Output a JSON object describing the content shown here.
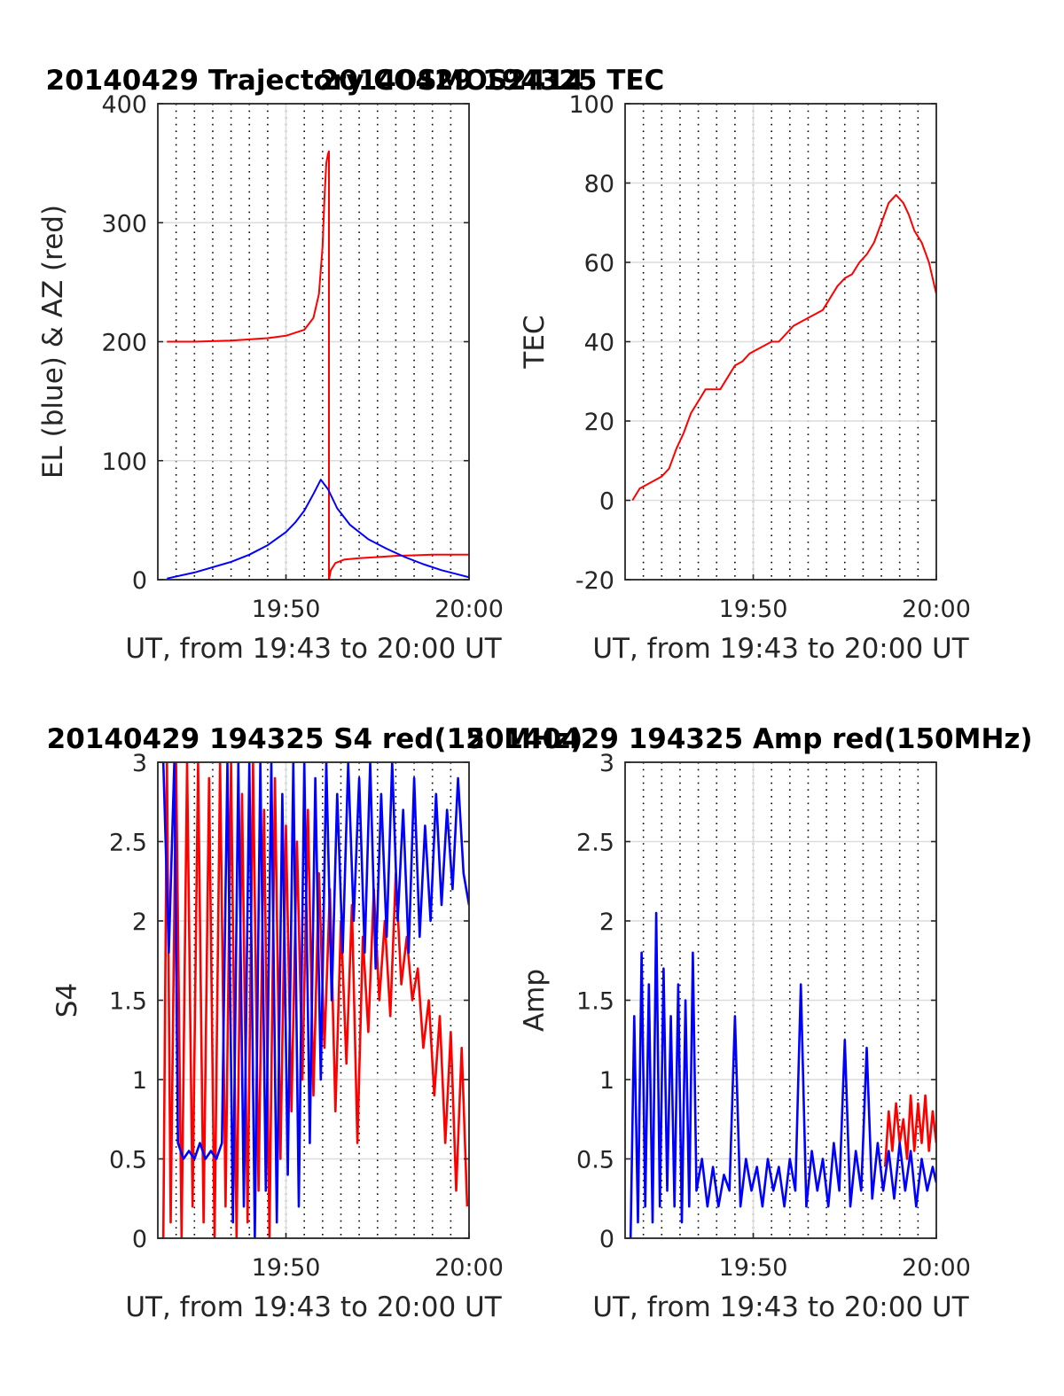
{
  "chart_data": [
    {
      "id": "traj",
      "type": "line",
      "title": "20140429 Trajectory COSMOS2414",
      "xlabel": "UT, from 19:43 to 20:00 UT",
      "ylabel": "EL (blue) & AZ (red)",
      "xlim": [
        0,
        17
      ],
      "ylim": [
        0,
        400
      ],
      "yticks": [
        0,
        100,
        200,
        300,
        400
      ],
      "ytick_labels": [
        "0",
        "100",
        "200",
        "300",
        "400"
      ],
      "xticks": [
        7,
        17
      ],
      "xtick_labels": [
        "19:50",
        "20:00"
      ],
      "grid": true,
      "series": [
        {
          "name": "AZ",
          "color": "#ff0000",
          "x": [
            0.5,
            2,
            4,
            6,
            7,
            8,
            8.5,
            8.8,
            9.0,
            9.1,
            9.2,
            9.3,
            9.35,
            9.35,
            9.45,
            9.7,
            10.2,
            11,
            12,
            13,
            14,
            15,
            16,
            17
          ],
          "y": [
            200,
            200,
            201,
            203,
            205,
            210,
            220,
            240,
            280,
            320,
            350,
            358,
            360,
            0,
            8,
            14,
            17,
            18,
            19,
            20,
            20.5,
            21,
            21,
            21
          ]
        },
        {
          "name": "EL",
          "color": "#0000ff",
          "x": [
            0.5,
            2,
            4,
            5,
            6,
            7,
            7.5,
            8,
            8.5,
            8.9,
            9.3,
            9.8,
            10.5,
            11.5,
            12.5,
            13.5,
            14.5,
            15.5,
            17
          ],
          "y": [
            1,
            6,
            15,
            21,
            29,
            40,
            48,
            58,
            72,
            84,
            76,
            60,
            46,
            34,
            26,
            19,
            13,
            8,
            2
          ]
        }
      ]
    },
    {
      "id": "tec",
      "type": "line",
      "title": "20140429 194325 TEC",
      "xlabel": "UT, from 19:43 to 20:00 UT",
      "ylabel": "TEC",
      "xlim": [
        0,
        17
      ],
      "ylim": [
        -20,
        100
      ],
      "yticks": [
        -20,
        0,
        20,
        40,
        60,
        80,
        100
      ],
      "ytick_labels": [
        "-20",
        "0",
        "20",
        "40",
        "60",
        "80",
        "100"
      ],
      "xticks": [
        7,
        17
      ],
      "xtick_labels": [
        "19:50",
        "20:00"
      ],
      "grid": true,
      "series": [
        {
          "name": "TEC",
          "color": "#ff0000",
          "x": [
            0.4,
            0.8,
            1.2,
            1.6,
            2.0,
            2.4,
            2.8,
            3.2,
            3.6,
            4.0,
            4.4,
            4.8,
            5.2,
            5.6,
            6.0,
            6.4,
            6.8,
            7.2,
            7.6,
            8.0,
            8.4,
            8.8,
            9.2,
            9.6,
            10.0,
            10.4,
            10.8,
            11.2,
            11.6,
            12.0,
            12.4,
            12.8,
            13.2,
            13.6,
            14.0,
            14.4,
            14.8,
            15.0,
            15.2,
            15.5,
            15.8,
            16.2,
            16.6,
            17.0
          ],
          "y": [
            0,
            3,
            4,
            5,
            6,
            8,
            13,
            17,
            22,
            25,
            28,
            28,
            28,
            31,
            34,
            35,
            37,
            38,
            39,
            40,
            40,
            42,
            44,
            45,
            46,
            47,
            48,
            51,
            54,
            56,
            57,
            60,
            62,
            65,
            70,
            75,
            77,
            76,
            75,
            72,
            68,
            65,
            60,
            52
          ]
        }
      ]
    },
    {
      "id": "s4",
      "type": "line",
      "title": "20140429 194325 S4 red(150MHz)",
      "xlabel": "UT, from 19:43 to 20:00 UT",
      "ylabel": "S4",
      "xlim": [
        0,
        17
      ],
      "ylim": [
        0,
        3
      ],
      "yticks": [
        0,
        0.5,
        1,
        1.5,
        2,
        2.5,
        3
      ],
      "ytick_labels": [
        "0",
        "0.5",
        "1",
        "1.5",
        "2",
        "2.5",
        "3"
      ],
      "xticks": [
        7,
        17
      ],
      "xtick_labels": [
        "19:50",
        "20:00"
      ],
      "grid": true,
      "series": [
        {
          "name": "S4 red",
          "color": "#ff0000",
          "x": [
            0.3,
            0.5,
            0.7,
            1.0,
            1.3,
            1.6,
            1.9,
            2.2,
            2.5,
            2.8,
            3.1,
            3.4,
            3.7,
            4.0,
            4.3,
            4.6,
            4.9,
            5.2,
            5.5,
            5.8,
            6.1,
            6.4,
            6.7,
            7.0,
            7.3,
            7.6,
            7.9,
            8.2,
            8.5,
            8.8,
            9.1,
            9.4,
            9.7,
            10.0,
            10.3,
            10.6,
            10.9,
            11.2,
            11.5,
            11.8,
            12.1,
            12.4,
            12.7,
            13.0,
            13.3,
            13.6,
            13.9,
            14.2,
            14.5,
            14.8,
            15.1,
            15.4,
            15.7,
            16.0,
            16.3,
            16.6,
            16.9
          ],
          "y": [
            0,
            3,
            0.1,
            3,
            0,
            3,
            0.2,
            3,
            0.1,
            2.9,
            0,
            3,
            0.2,
            3,
            0,
            2.8,
            0.1,
            3,
            0.3,
            2.7,
            0,
            2.9,
            0.5,
            2.6,
            0.8,
            2.5,
            1.0,
            2.7,
            0.9,
            2.3,
            1.2,
            2.2,
            0.8,
            2.0,
            1.1,
            2.1,
            0.6,
            1.9,
            1.3,
            2.2,
            1.5,
            2.0,
            1.4,
            2.3,
            1.6,
            1.9,
            1.5,
            1.7,
            1.2,
            1.5,
            0.9,
            1.4,
            0.6,
            1.3,
            0.3,
            1.2,
            0.2
          ]
        },
        {
          "name": "S4 blue",
          "color": "#0000ff",
          "x": [
            0.3,
            0.6,
            0.9,
            1.1,
            1.4,
            1.7,
            2.0,
            2.3,
            2.6,
            2.9,
            3.2,
            3.5,
            3.8,
            4.1,
            4.4,
            4.7,
            5.0,
            5.3,
            5.6,
            5.9,
            6.2,
            6.5,
            6.8,
            7.1,
            7.4,
            7.7,
            8.0,
            8.3,
            8.6,
            8.9,
            9.2,
            9.5,
            9.8,
            10.1,
            10.4,
            10.7,
            11.0,
            11.3,
            11.6,
            11.9,
            12.2,
            12.5,
            12.8,
            13.1,
            13.4,
            13.7,
            14.0,
            14.3,
            14.6,
            14.9,
            15.2,
            15.5,
            15.8,
            16.1,
            16.4,
            16.7,
            17.0
          ],
          "y": [
            3,
            1.8,
            3,
            0.6,
            0.5,
            0.55,
            0.5,
            0.6,
            0.5,
            0.55,
            0.5,
            0.6,
            3,
            0.1,
            3,
            0.2,
            3,
            0,
            3,
            0.3,
            3,
            0.1,
            2.8,
            0.4,
            3,
            0.2,
            3,
            0.6,
            2.9,
            1.0,
            3,
            1.5,
            2.8,
            1.8,
            3,
            2.0,
            2.9,
            1.8,
            3,
            1.7,
            2.8,
            1.9,
            3,
            2.0,
            2.7,
            1.8,
            2.9,
            1.9,
            2.6,
            2.0,
            2.8,
            2.1,
            2.7,
            2.2,
            2.9,
            2.3,
            2.1
          ]
        }
      ]
    },
    {
      "id": "amp",
      "type": "line",
      "title": "20140429 194325 Amp red(150MHz)",
      "xlabel": "UT, from 19:43 to 20:00 UT",
      "ylabel": "Amp",
      "xlim": [
        0,
        17
      ],
      "ylim": [
        0,
        3
      ],
      "yticks": [
        0,
        0.5,
        1,
        1.5,
        2,
        2.5,
        3
      ],
      "ytick_labels": [
        "0",
        "0.5",
        "1",
        "1.5",
        "2",
        "2.5",
        "3"
      ],
      "xticks": [
        7,
        17
      ],
      "xtick_labels": [
        "19:50",
        "20:00"
      ],
      "grid": true,
      "series": [
        {
          "name": "Amp red",
          "color": "#ff0000",
          "x": [
            14.2,
            14.4,
            14.6,
            14.8,
            15.0,
            15.2,
            15.4,
            15.6,
            15.8,
            16.0,
            16.2,
            16.4,
            16.6,
            16.8,
            17.0
          ],
          "y": [
            0.45,
            0.8,
            0.55,
            0.85,
            0.6,
            0.75,
            0.5,
            0.9,
            0.55,
            0.85,
            0.6,
            0.9,
            0.55,
            0.8,
            0.6
          ]
        },
        {
          "name": "Amp blue",
          "color": "#0000ff",
          "x": [
            0.3,
            0.5,
            0.7,
            0.9,
            1.1,
            1.3,
            1.5,
            1.7,
            1.9,
            2.1,
            2.3,
            2.5,
            2.7,
            2.9,
            3.1,
            3.3,
            3.5,
            3.7,
            3.9,
            4.2,
            4.5,
            4.8,
            5.1,
            5.4,
            5.7,
            6.0,
            6.3,
            6.6,
            6.9,
            7.2,
            7.5,
            7.8,
            8.1,
            8.4,
            8.7,
            9.0,
            9.3,
            9.6,
            9.9,
            10.2,
            10.5,
            10.8,
            11.1,
            11.4,
            11.7,
            12.0,
            12.3,
            12.6,
            12.9,
            13.2,
            13.5,
            13.8,
            14.1,
            14.4,
            14.7,
            15.0,
            15.3,
            15.6,
            15.9,
            16.2,
            16.5,
            16.8,
            17.0
          ],
          "y": [
            0.0,
            1.4,
            0.1,
            1.8,
            0.2,
            1.6,
            0.1,
            2.05,
            0.2,
            1.7,
            0.3,
            1.4,
            0.2,
            1.6,
            0.1,
            1.5,
            0.2,
            1.8,
            0.3,
            0.5,
            0.2,
            0.45,
            0.2,
            0.4,
            0.3,
            1.4,
            0.2,
            0.5,
            0.3,
            0.45,
            0.2,
            0.5,
            0.3,
            0.45,
            0.2,
            0.5,
            0.3,
            1.6,
            0.2,
            0.55,
            0.3,
            0.5,
            0.2,
            0.6,
            0.3,
            1.25,
            0.2,
            0.55,
            0.3,
            1.2,
            0.25,
            0.6,
            0.3,
            0.55,
            0.25,
            0.6,
            0.3,
            0.55,
            0.2,
            0.5,
            0.3,
            0.45,
            0.35
          ]
        }
      ]
    }
  ]
}
